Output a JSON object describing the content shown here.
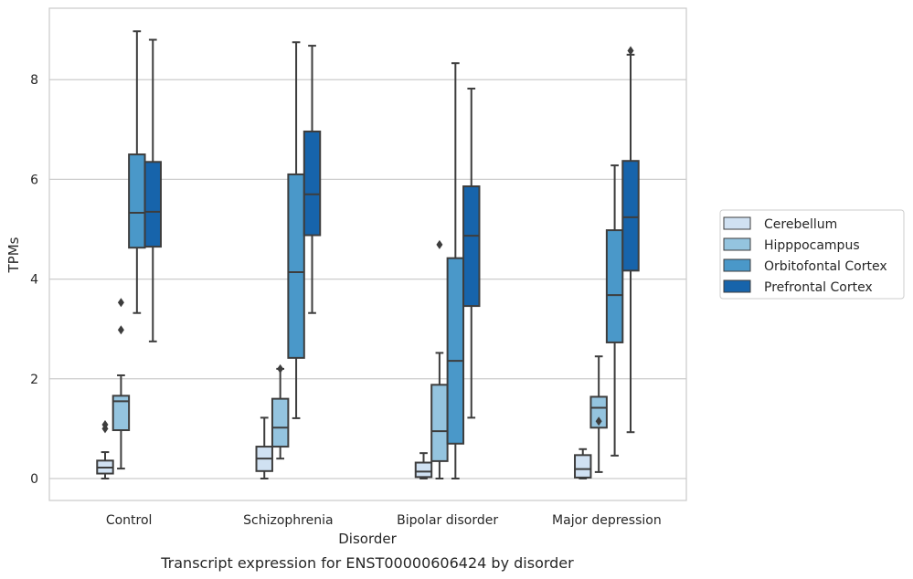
{
  "caption": "Transcript expression for ENST00000606424 by disorder",
  "chart_data": {
    "type": "box",
    "title": "",
    "xlabel": "Disorder",
    "ylabel": "TPMs",
    "ylim": [
      -0.4,
      9.4
    ],
    "yticks": [
      0,
      2,
      4,
      6,
      8
    ],
    "grid": "horizontal",
    "legend_position": "right",
    "categories": [
      "Control",
      "Schizophrenia",
      "Bipolar disorder",
      "Major depression"
    ],
    "series": [
      {
        "name": "Cerebellum",
        "color": "#d0e1f2",
        "boxes": [
          {
            "whisker_low": 0.0,
            "q1": 0.1,
            "median": 0.22,
            "q3": 0.36,
            "whisker_high": 0.53,
            "outliers": [
              1.0,
              1.08
            ]
          },
          {
            "whisker_low": 0.0,
            "q1": 0.15,
            "median": 0.4,
            "q3": 0.64,
            "whisker_high": 1.22,
            "outliers": []
          },
          {
            "whisker_low": 0.0,
            "q1": 0.03,
            "median": 0.14,
            "q3": 0.32,
            "whisker_high": 0.51,
            "outliers": []
          },
          {
            "whisker_low": 0.0,
            "q1": 0.02,
            "median": 0.19,
            "q3": 0.47,
            "whisker_high": 0.59,
            "outliers": []
          }
        ]
      },
      {
        "name": "Hipppocampus",
        "color": "#94c4df",
        "boxes": [
          {
            "whisker_low": 0.2,
            "q1": 0.97,
            "median": 1.55,
            "q3": 1.66,
            "whisker_high": 2.07,
            "outliers": [
              2.98,
              3.53
            ]
          },
          {
            "whisker_low": 0.4,
            "q1": 0.64,
            "median": 1.02,
            "q3": 1.6,
            "whisker_high": 2.2,
            "outliers": [
              2.2
            ]
          },
          {
            "whisker_low": 0.0,
            "q1": 0.35,
            "median": 0.95,
            "q3": 1.88,
            "whisker_high": 2.52,
            "outliers": [
              4.69
            ]
          },
          {
            "whisker_low": 0.13,
            "q1": 1.02,
            "median": 1.42,
            "q3": 1.64,
            "whisker_high": 2.45,
            "outliers": [
              1.15
            ]
          }
        ]
      },
      {
        "name": "Orbitofontal Cortex",
        "color": "#4a98c9",
        "boxes": [
          {
            "whisker_low": 3.32,
            "q1": 4.63,
            "median": 5.33,
            "q3": 6.5,
            "whisker_high": 8.97,
            "outliers": []
          },
          {
            "whisker_low": 1.21,
            "q1": 2.42,
            "median": 4.14,
            "q3": 6.1,
            "whisker_high": 8.75,
            "outliers": []
          },
          {
            "whisker_low": 0.0,
            "q1": 0.7,
            "median": 2.36,
            "q3": 4.42,
            "whisker_high": 8.33,
            "outliers": []
          },
          {
            "whisker_low": 0.46,
            "q1": 2.73,
            "median": 3.68,
            "q3": 4.98,
            "whisker_high": 6.28,
            "outliers": []
          }
        ]
      },
      {
        "name": "Prefrontal Cortex",
        "color": "#1764ab",
        "boxes": [
          {
            "whisker_low": 2.75,
            "q1": 4.65,
            "median": 5.35,
            "q3": 6.35,
            "whisker_high": 8.8,
            "outliers": []
          },
          {
            "whisker_low": 3.32,
            "q1": 4.88,
            "median": 5.7,
            "q3": 6.96,
            "whisker_high": 8.68,
            "outliers": []
          },
          {
            "whisker_low": 1.22,
            "q1": 3.46,
            "median": 4.87,
            "q3": 5.86,
            "whisker_high": 7.82,
            "outliers": []
          },
          {
            "whisker_low": 0.93,
            "q1": 4.17,
            "median": 5.24,
            "q3": 6.37,
            "whisker_high": 8.5,
            "outliers": [
              8.58
            ]
          }
        ]
      }
    ]
  }
}
